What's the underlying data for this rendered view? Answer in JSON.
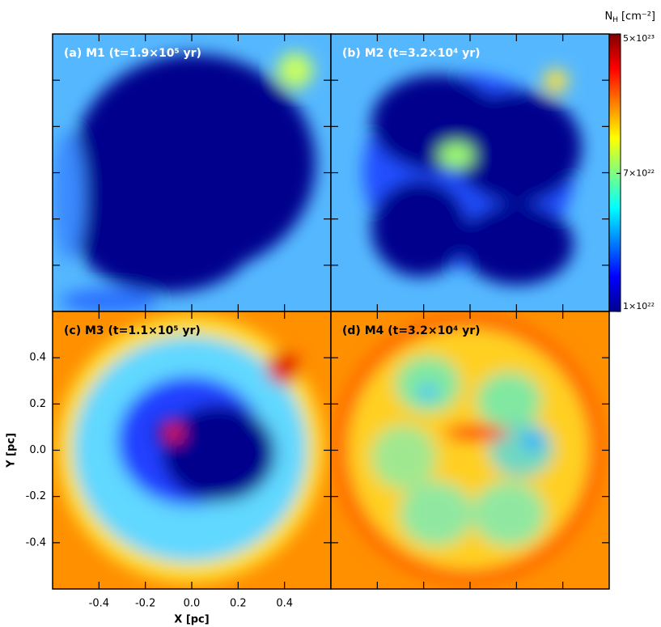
{
  "chart_data": {
    "type": "heatmap",
    "panels": [
      {
        "label": "(a) M1 (t=1.9×10⁵ yr)"
      },
      {
        "label": "(b) M2 (t=3.2×10⁴ yr)"
      },
      {
        "label": "(c) M3 (t=1.1×10⁵ yr)"
      },
      {
        "label": "(d) M4 (t=3.2×10⁴ yr)"
      }
    ],
    "xlabel": "X [pc]",
    "ylabel": "Y [pc]",
    "xlim": [
      -0.6,
      0.6
    ],
    "ylim": [
      -0.6,
      0.6
    ],
    "xticks": [
      -0.4,
      -0.2,
      {
        "value": 0,
        "label": "0.0"
      },
      0.2,
      0.4
    ],
    "yticks": [
      -0.4,
      -0.2,
      {
        "value": 0,
        "label": "0.0"
      },
      0.2,
      0.4
    ],
    "colorbar": {
      "symbol": "N",
      "subscript": "H",
      "unit": "[cm⁻²]",
      "scale": "log",
      "lim": [
        1e+22,
        5e+23
      ],
      "ticks": [
        {
          "value": 1e+22,
          "label": "1×10²²"
        },
        {
          "value": 7e+22,
          "label": "7×10²²"
        },
        {
          "value": 5e+23,
          "label": "5×10²³"
        }
      ]
    }
  }
}
